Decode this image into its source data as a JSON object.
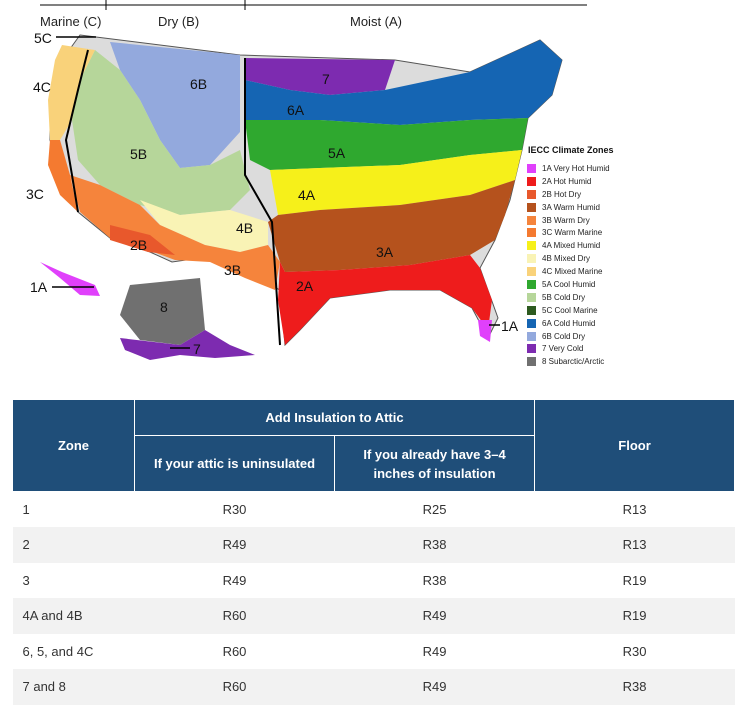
{
  "map": {
    "regions": {
      "marine": "Marine (C)",
      "dry": "Dry (B)",
      "moist": "Moist (A)"
    },
    "zone_labels": {
      "z5c": "5C",
      "z4c": "4C",
      "z3c": "3C",
      "z1a_hi": "1A",
      "z6b": "6B",
      "z7": "7",
      "z6a": "6A",
      "z5b": "5B",
      "z5a": "5A",
      "z4a": "4A",
      "z4b": "4B",
      "z2b": "2B",
      "z3b": "3B",
      "z3a": "3A",
      "z2a": "2A",
      "z1a_fl": "1A",
      "z8": "8",
      "z7_ak": "7"
    },
    "legend": {
      "title": "IECC Climate Zones",
      "items": [
        {
          "label": "1A Very Hot Humid",
          "color": "#e040fb"
        },
        {
          "label": "2A Hot Humid",
          "color": "#ee1c1c"
        },
        {
          "label": "2B Hot Dry",
          "color": "#e8582c"
        },
        {
          "label": "3A Warm Humid",
          "color": "#b5521d"
        },
        {
          "label": "3B Warm Dry",
          "color": "#f5843c"
        },
        {
          "label": "3C Warm Marine",
          "color": "#f47a30"
        },
        {
          "label": "4A Mixed Humid",
          "color": "#f6f01a"
        },
        {
          "label": "4B Mixed Dry",
          "color": "#f9f3b5"
        },
        {
          "label": "4C Mixed Marine",
          "color": "#f9d27a"
        },
        {
          "label": "5A Cool Humid",
          "color": "#2fa82f"
        },
        {
          "label": "5B Cold Dry",
          "color": "#b6d69a"
        },
        {
          "label": "5C Cool Marine",
          "color": "#2d5a1f"
        },
        {
          "label": "6A Cold Humid",
          "color": "#1565b3"
        },
        {
          "label": "6B Cold Dry",
          "color": "#93a9dd"
        },
        {
          "label": "7 Very Cold",
          "color": "#7d2bb0"
        },
        {
          "label": "8 Subarctic/Arctic",
          "color": "#707070"
        }
      ]
    }
  },
  "table": {
    "headers": {
      "zone": "Zone",
      "attic_group": "Add Insulation to Attic",
      "uninsulated": "If your attic is uninsulated",
      "has_insulation": "If you already have 3–4 inches of insulation",
      "floor": "Floor"
    },
    "rows": [
      {
        "zone": "1",
        "uninsulated": "R30",
        "has_insulation": "R25",
        "floor": "R13"
      },
      {
        "zone": "2",
        "uninsulated": "R49",
        "has_insulation": "R38",
        "floor": "R13"
      },
      {
        "zone": "3",
        "uninsulated": "R49",
        "has_insulation": "R38",
        "floor": "R19"
      },
      {
        "zone": "4A and 4B",
        "uninsulated": "R60",
        "has_insulation": "R49",
        "floor": "R19"
      },
      {
        "zone": "6, 5, and 4C",
        "uninsulated": "R60",
        "has_insulation": "R49",
        "floor": "R30"
      },
      {
        "zone": "7 and 8",
        "uninsulated": "R60",
        "has_insulation": "R49",
        "floor": "R38"
      }
    ]
  }
}
